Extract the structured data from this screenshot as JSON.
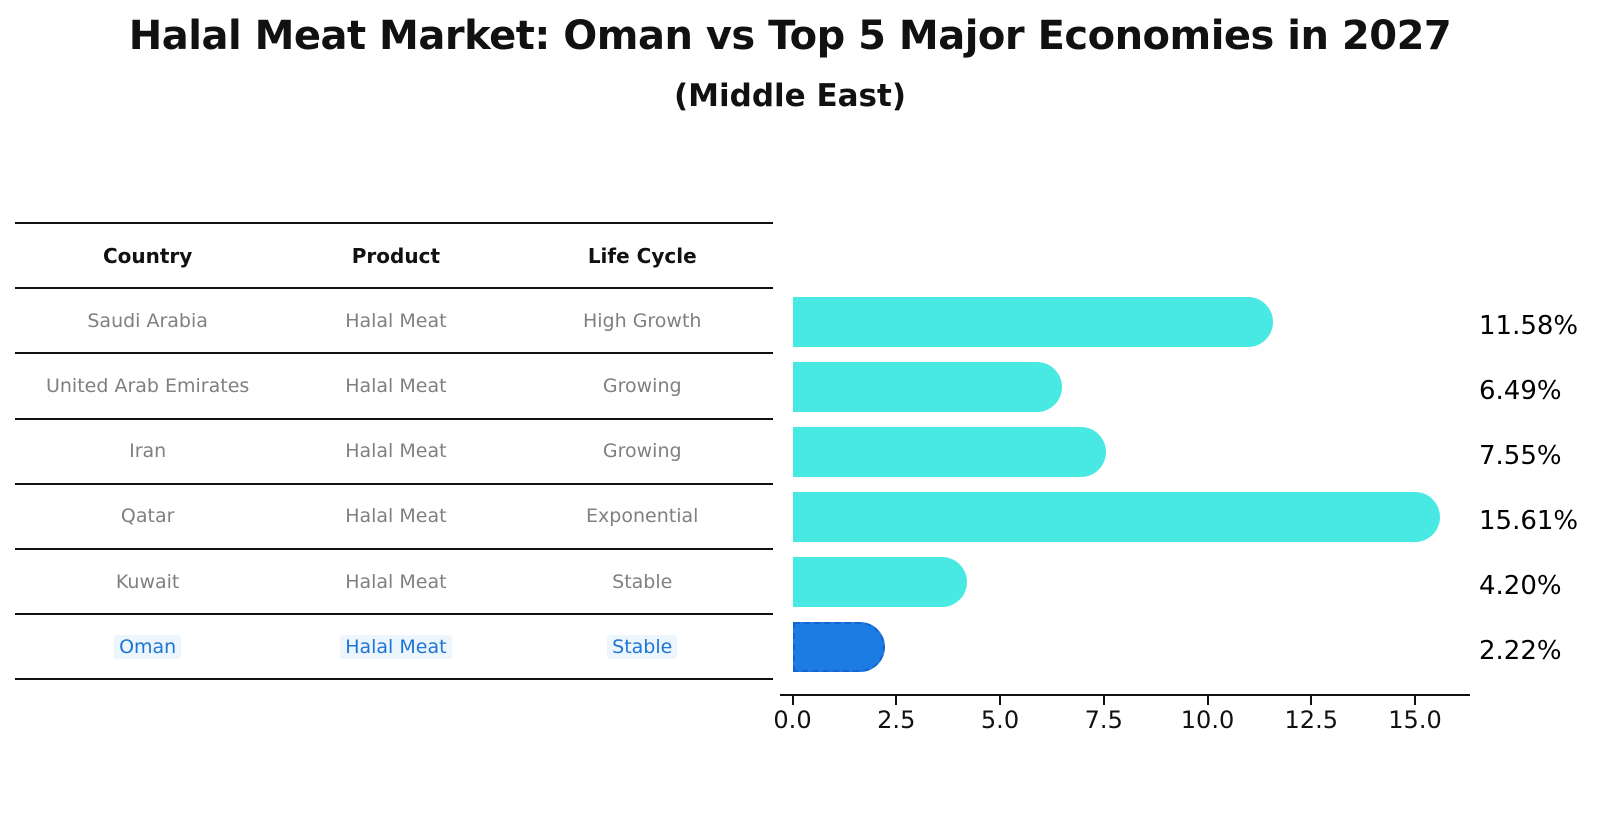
{
  "title": "Halal Meat Market: Oman vs Top 5 Major Economies in 2027",
  "subtitle": "(Middle East)",
  "table": {
    "headers": [
      "Country",
      "Product",
      "Life Cycle"
    ],
    "rows": [
      {
        "country": "Saudi Arabia",
        "product": "Halal Meat",
        "life_cycle": "High Growth",
        "highlight": false
      },
      {
        "country": "United Arab Emirates",
        "product": "Halal Meat",
        "life_cycle": "Growing",
        "highlight": false
      },
      {
        "country": "Iran",
        "product": "Halal Meat",
        "life_cycle": "Growing",
        "highlight": false
      },
      {
        "country": "Qatar",
        "product": "Halal Meat",
        "life_cycle": "Exponential",
        "highlight": false
      },
      {
        "country": "Kuwait",
        "product": "Halal Meat",
        "life_cycle": "Stable",
        "highlight": false
      },
      {
        "country": "Oman",
        "product": "Halal Meat",
        "life_cycle": "Stable",
        "highlight": true
      }
    ]
  },
  "chart_data": {
    "type": "bar",
    "orientation": "horizontal",
    "title": "Halal Meat Market: Oman vs Top 5 Major Economies in 2027",
    "subtitle": "(Middle East)",
    "categories": [
      "Saudi Arabia",
      "United Arab Emirates",
      "Iran",
      "Qatar",
      "Kuwait",
      "Oman"
    ],
    "values": [
      11.58,
      6.49,
      7.55,
      15.61,
      4.2,
      2.22
    ],
    "value_labels": [
      "11.58%",
      "6.49%",
      "7.55%",
      "15.61%",
      "4.20%",
      "2.22%"
    ],
    "x_tick_labels": [
      "0.0",
      "2.5",
      "5.0",
      "7.5",
      "10.0",
      "12.5",
      "15.0"
    ],
    "x_ticks": [
      0.0,
      2.5,
      5.0,
      7.5,
      10.0,
      12.5,
      15.0
    ],
    "xlim": [
      0,
      16.35
    ],
    "grid": false,
    "legend": false,
    "highlight_index": 5
  },
  "colors": {
    "bar": "#49e9e3",
    "highlight_bar": "#1d7ce3",
    "highlight_bar_border": "#1563cf",
    "row_text": "#808080",
    "highlight_text": "#1d76d2",
    "axis": "#111111",
    "title_text": "#111111"
  }
}
